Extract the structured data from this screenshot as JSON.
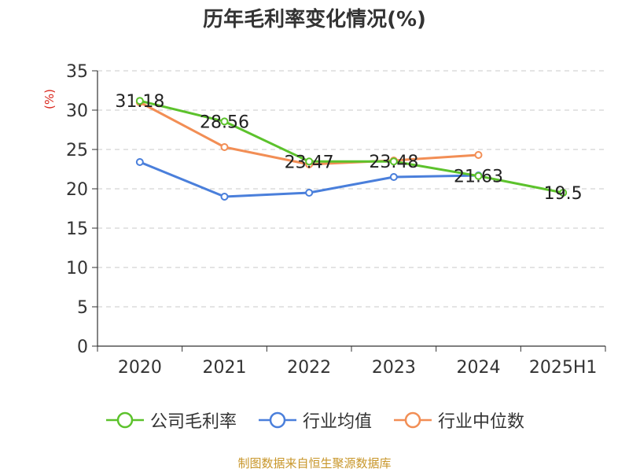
{
  "chart_data": {
    "type": "line",
    "title": "历年毛利率变化情况(%)",
    "ylabel": "(%)",
    "categories": [
      "2020",
      "2021",
      "2022",
      "2023",
      "2024",
      "2025H1"
    ],
    "ylim": [
      0,
      35
    ],
    "yticks": [
      0,
      5,
      10,
      15,
      20,
      25,
      30,
      35
    ],
    "grid": true,
    "legend_position": "bottom",
    "series": [
      {
        "name": "公司毛利率",
        "color": "#5cc22c",
        "values": [
          31.18,
          28.56,
          23.47,
          23.48,
          21.63,
          19.5
        ],
        "labels": [
          "31.18",
          "28.56",
          "23.47",
          "23.48",
          "21.63",
          "19.5"
        ]
      },
      {
        "name": "行业均值",
        "color": "#4a7fdb",
        "values": [
          23.4,
          19.0,
          19.5,
          21.5,
          21.7,
          null
        ]
      },
      {
        "name": "行业中位数",
        "color": "#f28e55",
        "values": [
          31.0,
          25.3,
          23.1,
          23.6,
          24.3,
          null
        ]
      }
    ]
  },
  "source_note": "制图数据来自恒生聚源数据库"
}
